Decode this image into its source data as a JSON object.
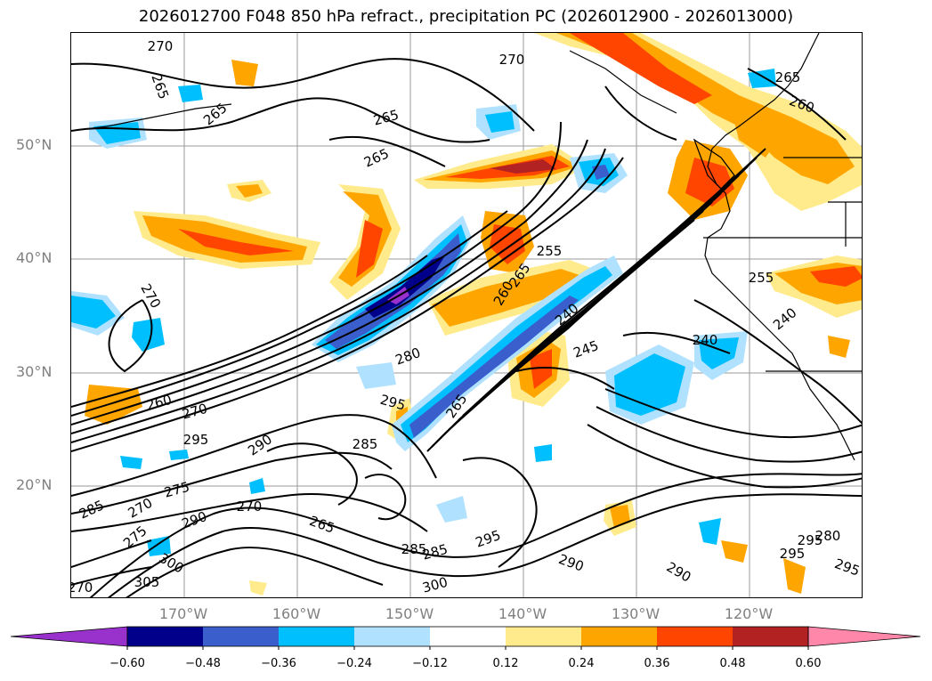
{
  "title": "2026012700 F048 850 hPa refract., precipitation PC (2026012900 - 2026013000)",
  "lat_labels": [
    "50°N",
    "40°N",
    "30°N",
    "20°N"
  ],
  "lon_labels": [
    "170°W",
    "160°W",
    "150°W",
    "140°W",
    "130°W",
    "120°W"
  ],
  "colorbar": {
    "colors": [
      "#9932cc",
      "#00008b",
      "#3a5fcd",
      "#00bfff",
      "#b0e2ff",
      "#ffffff",
      "#ffeb8b",
      "#ffa500",
      "#ff4500",
      "#b22222",
      "#ff88aa"
    ],
    "tick_labels": [
      "−0.60",
      "−0.48",
      "−0.36",
      "−0.24",
      "−0.12",
      "0.12",
      "0.24",
      "0.36",
      "0.48",
      "0.60"
    ]
  },
  "contour_labels": [
    "270",
    "265",
    "265",
    "265",
    "270",
    "265",
    "260",
    "265",
    "255",
    "265",
    "260",
    "255",
    "240",
    "270",
    "240",
    "280",
    "245",
    "240",
    "260",
    "270",
    "295",
    "265",
    "285",
    "290",
    "295",
    "275",
    "270",
    "270",
    "265",
    "285",
    "285",
    "275",
    "290",
    "295",
    "300",
    "285",
    "295",
    "290",
    "300",
    "305",
    "290",
    "280",
    "295",
    "295",
    "270"
  ]
}
